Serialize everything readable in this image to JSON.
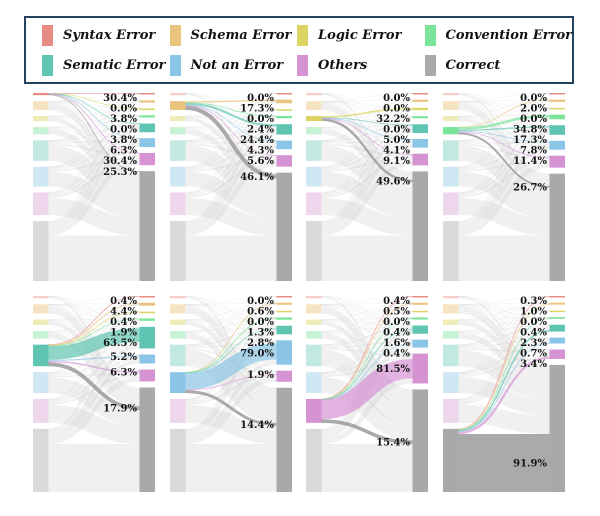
{
  "legend": {
    "items": [
      {
        "label": "Syntax Error",
        "color": "#e98b85",
        "pale": "#f6cdc9"
      },
      {
        "label": "Schema Error",
        "color": "#eac37e",
        "pale": "#f6e3c1"
      },
      {
        "label": "Logic Error",
        "color": "#dcd563",
        "pale": "#efecb8"
      },
      {
        "label": "Convention Error",
        "color": "#7ce39a",
        "pale": "#c8f2d4"
      },
      {
        "label": "Sematic Error",
        "color": "#5fc4b2",
        "pale": "#c1e8e1"
      },
      {
        "label": "Not an Error",
        "color": "#8ac4e6",
        "pale": "#cfe6f3"
      },
      {
        "label": "Others",
        "color": "#d693d4",
        "pale": "#eed6ec"
      },
      {
        "label": "Correct",
        "color": "#a9a9a9",
        "pale": "#d9d9d9"
      }
    ]
  },
  "chart_data": {
    "type": "sankey",
    "grid": "2 rows x 4 columns, one panel per focal source category",
    "categories": [
      "Syntax Error",
      "Schema Error",
      "Logic Error",
      "Convention Error",
      "Sematic Error",
      "Not an Error",
      "Others",
      "Correct"
    ],
    "target_order": [
      "Syntax Error",
      "Schema Error",
      "Logic Error",
      "Convention Error",
      "Sematic Error",
      "Not an Error",
      "Others",
      "Correct"
    ],
    "panels": [
      {
        "focal": "Syntax Error",
        "focal_index": 0,
        "outflow_pct": [
          30.4,
          0.0,
          3.8,
          0.0,
          3.8,
          6.3,
          30.4,
          25.3
        ]
      },
      {
        "focal": "Schema Error",
        "focal_index": 1,
        "outflow_pct": [
          0.0,
          17.3,
          0.0,
          2.4,
          24.4,
          4.3,
          5.6,
          46.1
        ]
      },
      {
        "focal": "Logic Error",
        "focal_index": 2,
        "outflow_pct": [
          0.0,
          0.0,
          32.2,
          0.0,
          5.0,
          4.1,
          9.1,
          49.6
        ]
      },
      {
        "focal": "Convention Error",
        "focal_index": 3,
        "outflow_pct": [
          0.0,
          2.0,
          0.0,
          34.8,
          17.3,
          7.8,
          11.4,
          26.7
        ]
      },
      {
        "focal": "Sematic Error",
        "focal_index": 4,
        "outflow_pct": [
          0.4,
          4.4,
          0.4,
          1.9,
          63.5,
          5.2,
          6.3,
          17.9
        ]
      },
      {
        "focal": "Not an Error",
        "focal_index": 5,
        "outflow_pct": [
          0.0,
          0.6,
          0.0,
          1.3,
          2.8,
          79.0,
          1.9,
          14.4
        ]
      },
      {
        "focal": "Others",
        "focal_index": 6,
        "outflow_pct": [
          0.4,
          0.5,
          0.0,
          0.4,
          1.6,
          0.4,
          81.5,
          15.4
        ]
      },
      {
        "focal": "Correct",
        "focal_index": 7,
        "outflow_pct": [
          0.3,
          1.0,
          0.0,
          0.4,
          2.3,
          0.7,
          3.4,
          91.9
        ]
      }
    ],
    "layout_hints": {
      "left_marginal_pct_est": [
        1.5,
        6,
        3.5,
        5,
        14,
        13.5,
        15.5,
        41
      ],
      "background_row_pct_est": [
        0.5,
        1.5,
        0.5,
        1.5,
        6,
        6,
        8,
        76
      ],
      "legend_position": "top",
      "flow_color_rule": "flows colored by target category; non-focal flows light gray"
    }
  }
}
